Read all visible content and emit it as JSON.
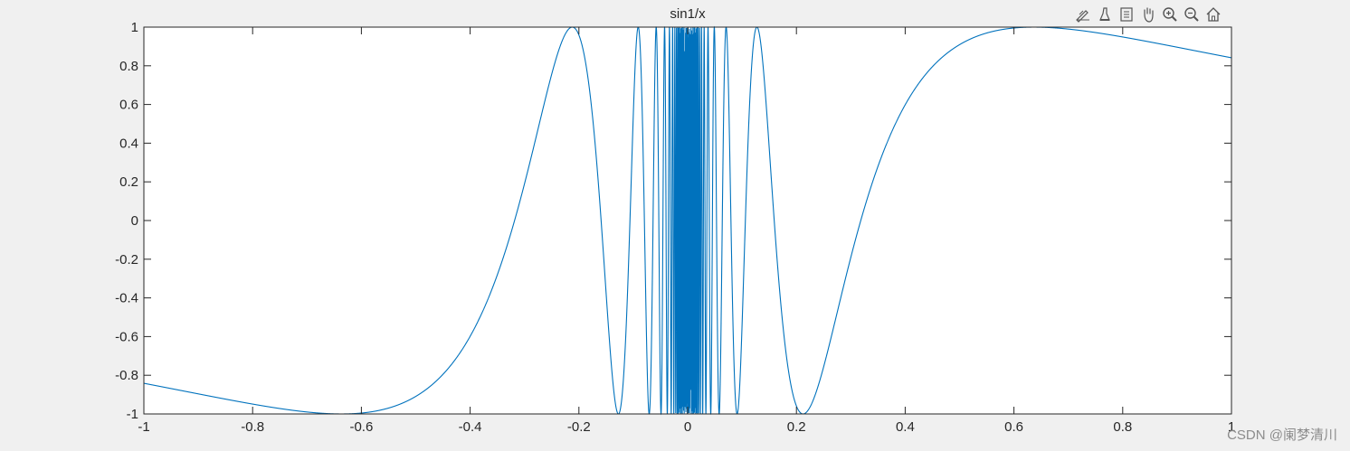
{
  "chart_data": {
    "type": "line",
    "title": "sin1/x",
    "xlabel": "",
    "ylabel": "",
    "xlim": [
      -1,
      1
    ],
    "ylim": [
      -1,
      1
    ],
    "xticks": [
      -1,
      -0.8,
      -0.6,
      -0.4,
      -0.2,
      0,
      0.2,
      0.4,
      0.6,
      0.8,
      1
    ],
    "xtick_labels": [
      "-1",
      "-0.8",
      "-0.6",
      "-0.4",
      "-0.2",
      "0",
      "0.2",
      "0.4",
      "0.6",
      "0.8",
      "1"
    ],
    "yticks": [
      -1,
      -0.8,
      -0.6,
      -0.4,
      -0.2,
      0,
      0.2,
      0.4,
      0.6,
      0.8,
      1
    ],
    "ytick_labels": [
      "-1",
      "-0.8",
      "-0.6",
      "-0.4",
      "-0.2",
      "0",
      "0.2",
      "0.4",
      "0.6",
      "0.8",
      "1"
    ],
    "grid": false,
    "series": [
      {
        "function": "sin(1/x)",
        "x_range": [
          -1,
          1
        ],
        "color": "#0072bd"
      }
    ]
  },
  "toolbar": {
    "icons": [
      "data-tips-icon",
      "brush-icon",
      "legend-icon",
      "pan-icon",
      "zoom-in-icon",
      "zoom-out-icon",
      "home-icon"
    ]
  },
  "watermark": "CSDN @阑梦清川",
  "colors": {
    "figure_bg": "#f0f0f0",
    "axes_bg": "#ffffff",
    "line": "#0072bd",
    "axis": "#262626"
  }
}
